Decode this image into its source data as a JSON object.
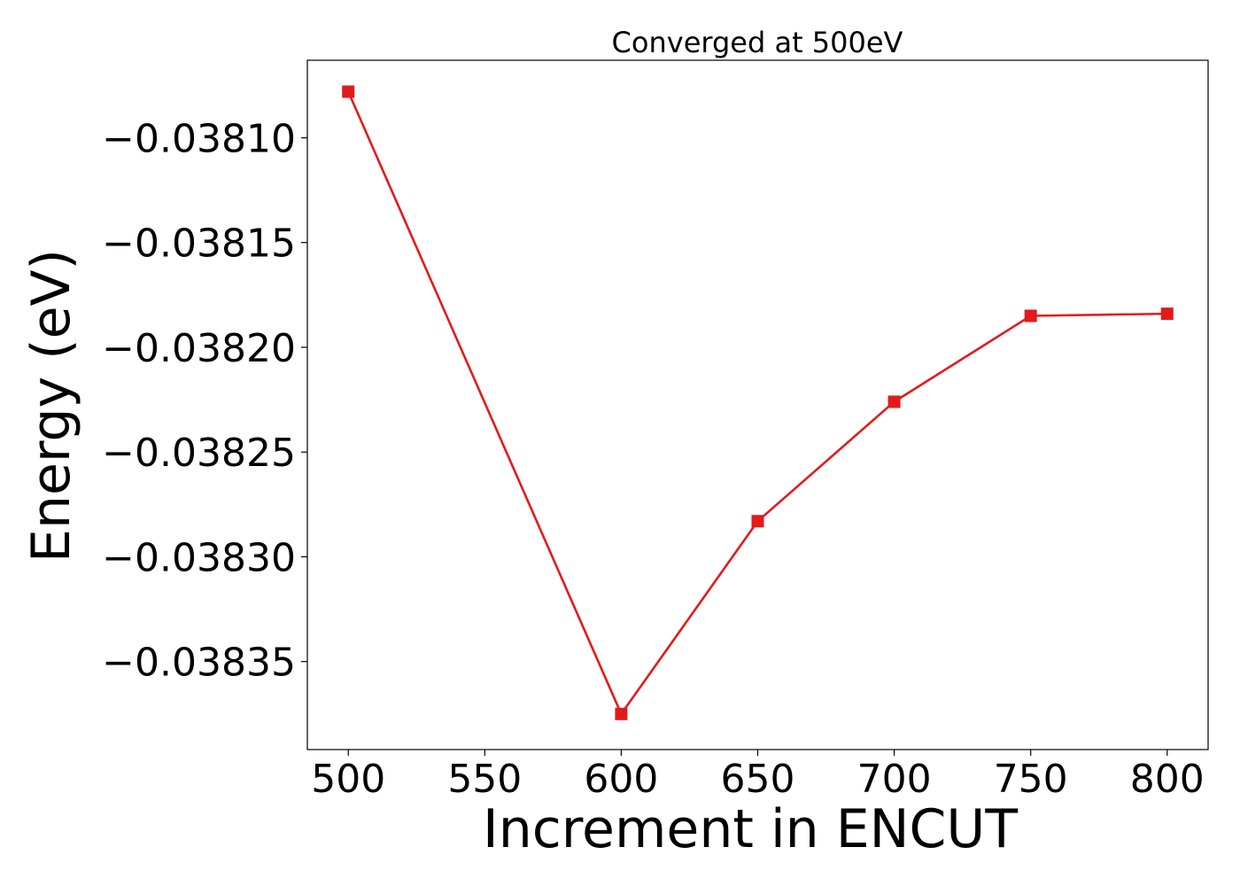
{
  "chart_data": {
    "type": "line",
    "title": "Converged at 500eV",
    "xlabel": "Increment in ENCUT",
    "ylabel": "Energy (eV)",
    "x": [
      500,
      600,
      650,
      700,
      750,
      800
    ],
    "series": [
      {
        "values": [
          -0.038078,
          -0.038375,
          -0.038283,
          -0.038226,
          -0.038185,
          -0.038184
        ],
        "color": "#e31a1c",
        "marker": "square"
      }
    ],
    "xlim": [
      485,
      815
    ],
    "ylim": [
      -0.038392,
      -0.038063
    ],
    "xticks": [
      500,
      550,
      600,
      650,
      700,
      750,
      800
    ],
    "xtick_labels": [
      "500",
      "550",
      "600",
      "650",
      "700",
      "750",
      "800"
    ],
    "yticks": [
      -0.0381,
      -0.03815,
      -0.0382,
      -0.03825,
      -0.0383,
      -0.03835
    ],
    "ytick_labels": [
      "−0.03810",
      "−0.03815",
      "−0.03820",
      "−0.03825",
      "−0.03830",
      "−0.03835"
    ],
    "grid": false,
    "legend": "none"
  }
}
